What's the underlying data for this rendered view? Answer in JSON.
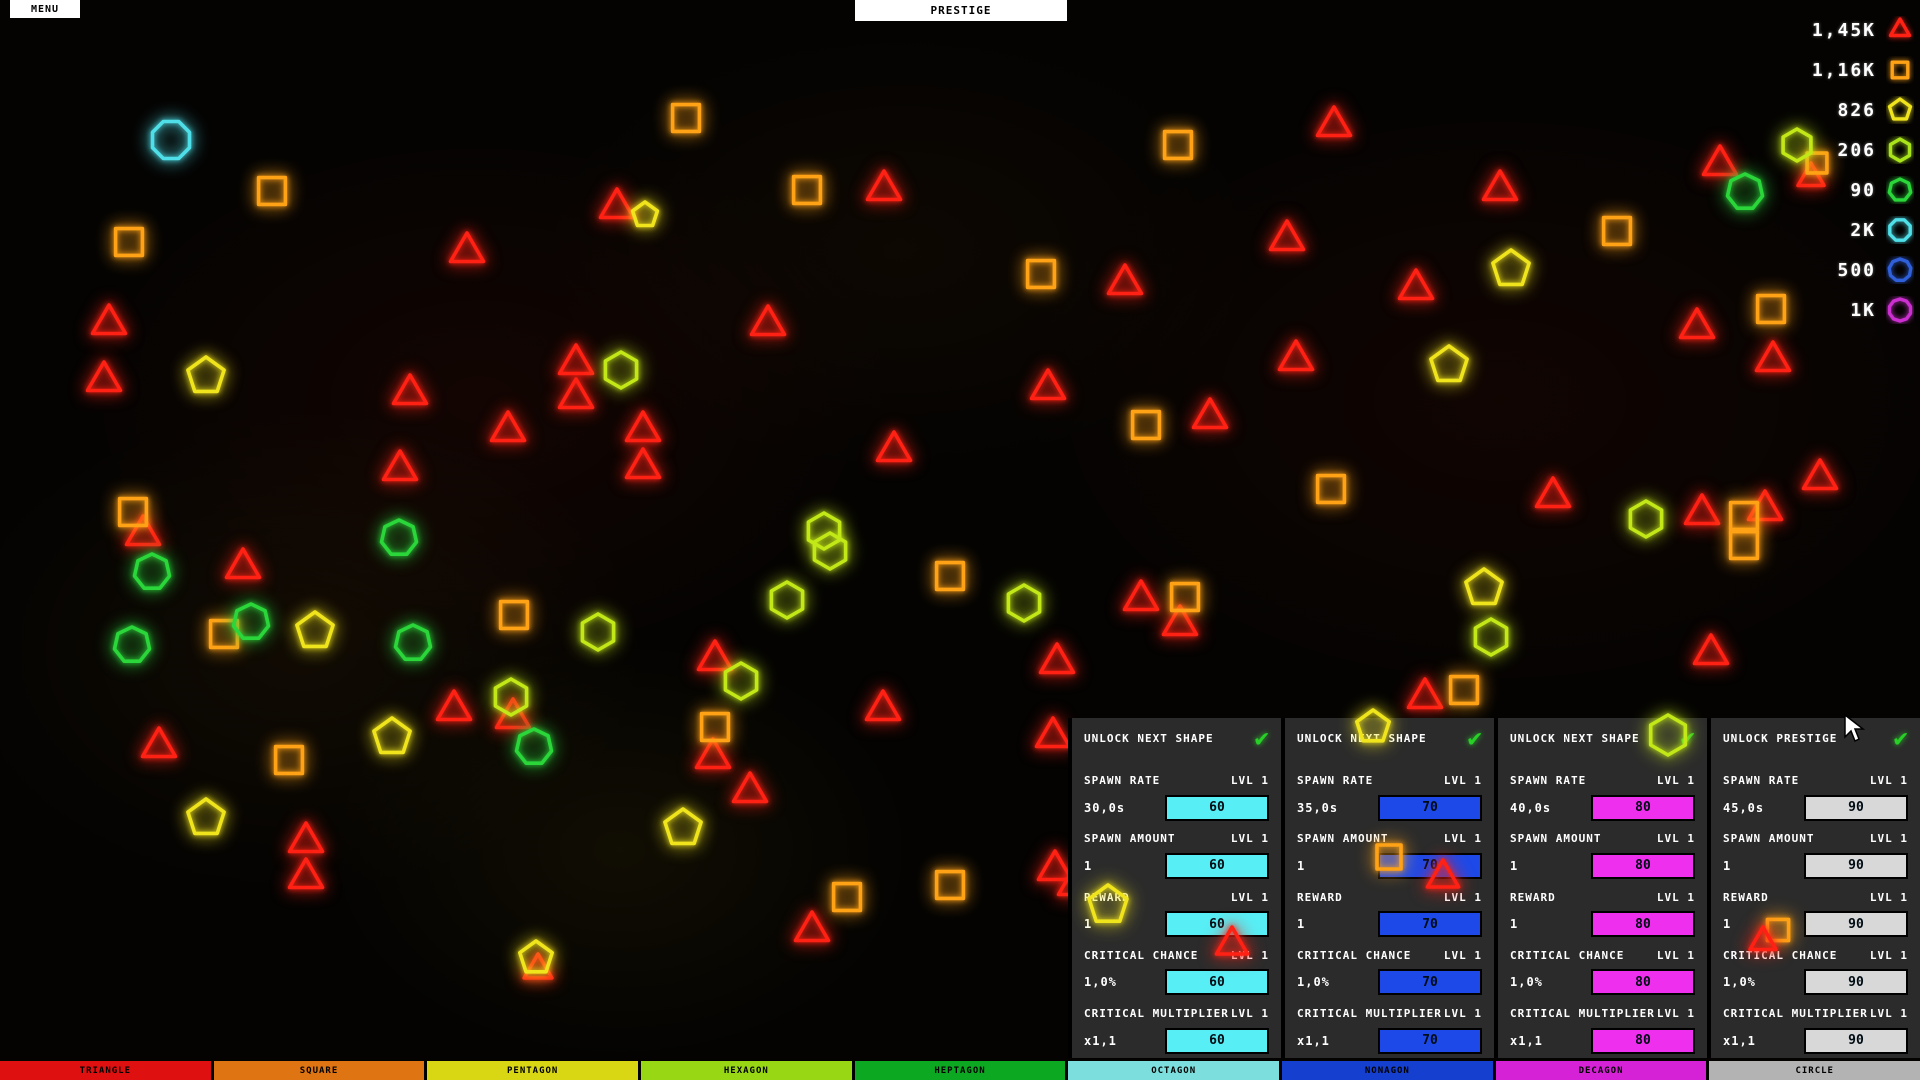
{
  "menu_button": "MENU",
  "prestige_button": "PRESTIGE",
  "counters": [
    {
      "value": "1,45K",
      "shape": "triangle",
      "color": "#ff2114"
    },
    {
      "value": "1,16K",
      "shape": "square",
      "color": "#ffa216"
    },
    {
      "value": "826",
      "shape": "pentagon",
      "color": "#f0e41c"
    },
    {
      "value": "206",
      "shape": "hexagon",
      "color": "#a9e41a"
    },
    {
      "value": "90",
      "shape": "heptagon",
      "color": "#2ad63a"
    },
    {
      "value": "2K",
      "shape": "octagon",
      "color": "#4fdfe8"
    },
    {
      "value": "500",
      "shape": "nonagon",
      "color": "#2f5fd9"
    },
    {
      "value": "1K",
      "shape": "decagon",
      "color": "#cc2fd0"
    }
  ],
  "tabs": [
    {
      "label": "TRIANGLE",
      "color": "#df1010"
    },
    {
      "label": "SQUARE",
      "color": "#df7412"
    },
    {
      "label": "PENTAGON",
      "color": "#d9d714"
    },
    {
      "label": "HEXAGON",
      "color": "#97d714"
    },
    {
      "label": "HEPTAGON",
      "color": "#0da821"
    },
    {
      "label": "OCTAGON",
      "color": "#7cdfdd"
    },
    {
      "label": "NONAGON",
      "color": "#1540cf"
    },
    {
      "label": "DECAGON",
      "color": "#d622d6"
    },
    {
      "label": "CIRCLE",
      "color": "#b3b3b3"
    }
  ],
  "panels": [
    {
      "header": "UNLOCK NEXT SHAPE",
      "unlocked_check": "✔",
      "accent": "#57eef5",
      "rows": [
        {
          "label": "SPAWN RATE",
          "level": "LVL 1",
          "value": "30,0s",
          "cost": "60"
        },
        {
          "label": "SPAWN AMOUNT",
          "level": "LVL 1",
          "value": "1",
          "cost": "60"
        },
        {
          "label": "REWARD",
          "level": "LVL 1",
          "value": "1",
          "cost": "60"
        },
        {
          "label": "CRITICAL CHANCE",
          "level": "LVL 1",
          "value": "1,0%",
          "cost": "60"
        },
        {
          "label": "CRITICAL MULTIPLIER",
          "level": "LVL 1",
          "value": "x1,1",
          "cost": "60"
        }
      ]
    },
    {
      "header": "UNLOCK NEXT SHAPE",
      "unlocked_check": "✔",
      "accent": "#1d49e8",
      "rows": [
        {
          "label": "SPAWN RATE",
          "level": "LVL 1",
          "value": "35,0s",
          "cost": "70"
        },
        {
          "label": "SPAWN AMOUNT",
          "level": "LVL 1",
          "value": "1",
          "cost": "70"
        },
        {
          "label": "REWARD",
          "level": "LVL 1",
          "value": "1",
          "cost": "70"
        },
        {
          "label": "CRITICAL CHANCE",
          "level": "LVL 1",
          "value": "1,0%",
          "cost": "70"
        },
        {
          "label": "CRITICAL MULTIPLIER",
          "level": "LVL 1",
          "value": "x1,1",
          "cost": "70"
        }
      ]
    },
    {
      "header": "UNLOCK NEXT SHAPE",
      "unlocked_check": "✔",
      "accent": "#ee30ee",
      "rows": [
        {
          "label": "SPAWN RATE",
          "level": "LVL 1",
          "value": "40,0s",
          "cost": "80"
        },
        {
          "label": "SPAWN AMOUNT",
          "level": "LVL 1",
          "value": "1",
          "cost": "80"
        },
        {
          "label": "REWARD",
          "level": "LVL 1",
          "value": "1",
          "cost": "80"
        },
        {
          "label": "CRITICAL CHANCE",
          "level": "LVL 1",
          "value": "1,0%",
          "cost": "80"
        },
        {
          "label": "CRITICAL MULTIPLIER",
          "level": "LVL 1",
          "value": "x1,1",
          "cost": "80"
        }
      ]
    },
    {
      "header": "UNLOCK PRESTIGE",
      "unlocked_check": "✔",
      "accent": "#d8d8d8",
      "rows": [
        {
          "label": "SPAWN RATE",
          "level": "LVL 1",
          "value": "45,0s",
          "cost": "90"
        },
        {
          "label": "SPAWN AMOUNT",
          "level": "LVL 1",
          "value": "1",
          "cost": "90"
        },
        {
          "label": "REWARD",
          "level": "LVL 1",
          "value": "1",
          "cost": "90"
        },
        {
          "label": "CRITICAL CHANCE",
          "level": "LVL 1",
          "value": "1,0%",
          "cost": "90"
        },
        {
          "label": "CRITICAL MULTIPLIER",
          "level": "LVL 1",
          "value": "x1,1",
          "cost": "90"
        }
      ]
    }
  ],
  "shape_palette": {
    "triangle": "#ff2114",
    "square": "#ffa216",
    "pentagon": "#f0e41c",
    "hexagon": "#c3e818",
    "heptagon": "#2ad63a",
    "octagon": "#4fdfe8"
  },
  "field_shapes": [
    [
      "t",
      109,
      324
    ],
    [
      "t",
      104,
      381
    ],
    [
      "t",
      467,
      252
    ],
    [
      "t",
      617,
      208
    ],
    [
      "t",
      884,
      190
    ],
    [
      "t",
      1334,
      126
    ],
    [
      "t",
      1500,
      190
    ],
    [
      "t",
      1287,
      240
    ],
    [
      "t",
      1125,
      284
    ],
    [
      "t",
      1416,
      289
    ],
    [
      "t",
      1697,
      328
    ],
    [
      "t",
      1773,
      361
    ],
    [
      "t",
      410,
      394
    ],
    [
      "t",
      576,
      364
    ],
    [
      "t",
      576,
      398
    ],
    [
      "t",
      508,
      431
    ],
    [
      "t",
      643,
      431
    ],
    [
      "t",
      768,
      325
    ],
    [
      "t",
      643,
      468
    ],
    [
      "t",
      894,
      451
    ],
    [
      "t",
      1048,
      389
    ],
    [
      "t",
      1210,
      418
    ],
    [
      "t",
      1296,
      360
    ],
    [
      "t",
      400,
      470
    ],
    [
      "t",
      143,
      535
    ],
    [
      "t",
      243,
      568
    ],
    [
      "t",
      159,
      747
    ],
    [
      "t",
      306,
      842
    ],
    [
      "t",
      306,
      878
    ],
    [
      "t",
      454,
      710
    ],
    [
      "t",
      513,
      718
    ],
    [
      "t",
      715,
      660
    ],
    [
      "t",
      713,
      758
    ],
    [
      "t",
      750,
      792
    ],
    [
      "t",
      812,
      931
    ],
    [
      "t",
      883,
      710
    ],
    [
      "t",
      1057,
      663
    ],
    [
      "t",
      1053,
      737
    ],
    [
      "t",
      1141,
      600
    ],
    [
      "t",
      1180,
      625
    ],
    [
      "t",
      1055,
      870
    ],
    [
      "t",
      1075,
      885
    ],
    [
      "t",
      1553,
      497
    ],
    [
      "t",
      1765,
      510
    ],
    [
      "t",
      1702,
      514
    ],
    [
      "t",
      1820,
      479
    ],
    [
      "t",
      1711,
      654
    ],
    [
      "t",
      1425,
      698
    ],
    [
      "t",
      1720,
      165
    ],
    [
      "t",
      1811,
      178,
      15
    ],
    [
      "t",
      538,
      970,
      16
    ],
    [
      "s",
      272,
      191
    ],
    [
      "s",
      129,
      242
    ],
    [
      "s",
      686,
      118
    ],
    [
      "s",
      807,
      190
    ],
    [
      "s",
      1178,
      145
    ],
    [
      "s",
      1041,
      274
    ],
    [
      "s",
      1617,
      231
    ],
    [
      "s",
      1771,
      309
    ],
    [
      "s",
      133,
      512
    ],
    [
      "s",
      224,
      634
    ],
    [
      "s",
      289,
      760
    ],
    [
      "s",
      514,
      615
    ],
    [
      "s",
      715,
      727
    ],
    [
      "s",
      950,
      576
    ],
    [
      "s",
      1146,
      425
    ],
    [
      "s",
      1331,
      489
    ],
    [
      "s",
      1185,
      597
    ],
    [
      "s",
      1464,
      690
    ],
    [
      "s",
      1744,
      516
    ],
    [
      "s",
      1744,
      545
    ],
    [
      "s",
      1817,
      163,
      14
    ],
    [
      "s",
      847,
      897
    ],
    [
      "s",
      950,
      885
    ],
    [
      "p",
      206,
      376
    ],
    [
      "p",
      1511,
      269
    ],
    [
      "p",
      645,
      215,
      13
    ],
    [
      "p",
      1449,
      365
    ],
    [
      "p",
      315,
      631
    ],
    [
      "p",
      392,
      737
    ],
    [
      "p",
      206,
      818
    ],
    [
      "p",
      683,
      828
    ],
    [
      "p",
      1484,
      588
    ],
    [
      "p",
      536,
      958,
      17
    ],
    [
      "h",
      621,
      370
    ],
    [
      "h",
      1646,
      519
    ],
    [
      "h",
      824,
      531
    ],
    [
      "h",
      830,
      551
    ],
    [
      "h",
      787,
      600
    ],
    [
      "h",
      1024,
      603
    ],
    [
      "h",
      1491,
      637
    ],
    [
      "h",
      511,
      697
    ],
    [
      "h",
      741,
      681
    ],
    [
      "h",
      1797,
      145,
      16
    ],
    [
      "h",
      598,
      632
    ],
    [
      "hp",
      399,
      538
    ],
    [
      "hp",
      152,
      572
    ],
    [
      "hp",
      251,
      622
    ],
    [
      "hp",
      132,
      645
    ],
    [
      "hp",
      413,
      643
    ],
    [
      "hp",
      534,
      747
    ],
    [
      "hp",
      1745,
      192
    ],
    [
      "o",
      171,
      140,
      20
    ]
  ],
  "overlay_shapes": [
    [
      "p",
      1108,
      905,
      20
    ],
    [
      "p",
      1373,
      727,
      17
    ],
    [
      "h",
      1668,
      735,
      20
    ],
    [
      "s",
      1389,
      857,
      17
    ],
    [
      "t",
      1443,
      878,
      18
    ],
    [
      "s",
      1778,
      930,
      15
    ],
    [
      "t",
      1763,
      942,
      15
    ],
    [
      "t",
      1232,
      945,
      18
    ]
  ]
}
